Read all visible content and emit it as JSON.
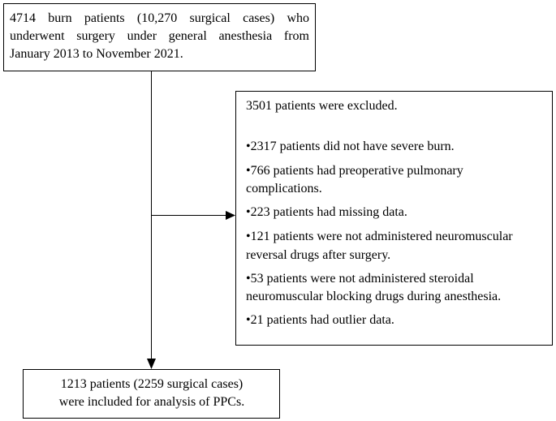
{
  "nodes": [
    {
      "lines": [
        "4714 burn patients (10,270 surgical cases) who",
        "underwent surgery under general anesthesia from",
        "January 2013 to November 2021."
      ]
    },
    {
      "title": "3501 patients were excluded.",
      "items": [
        [
          "•2317 patients did not have severe burn."
        ],
        [
          "•766 patients had preoperative pulmonary",
          "complications."
        ],
        [
          "•223 patients had missing data."
        ],
        [
          "•121 patients were not administered neuromuscular",
          "reversal drugs after surgery."
        ],
        [
          "•53 patients were not administered steroidal",
          "neuromuscular blocking drugs during anesthesia."
        ],
        [
          "•21 patients had outlier data."
        ]
      ]
    },
    {
      "lines": [
        "1213 patients (2259 surgical cases)",
        "were included for analysis of PPCs."
      ]
    }
  ]
}
